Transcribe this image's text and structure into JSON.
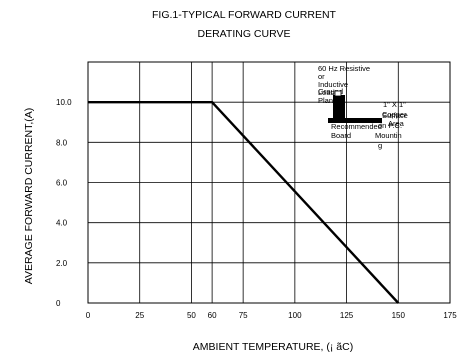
{
  "chart_data": {
    "type": "line",
    "title": [
      "FIG.1-TYPICAL FORWARD CURRENT",
      "DERATING CURVE"
    ],
    "xlabel": "AMBIENT TEMPERATURE, (¡ ãC)",
    "ylabel": "AVERAGE FORWARD CURRENT,(A)",
    "x_ticks": [
      0,
      25,
      50,
      60,
      75,
      100,
      125,
      150,
      175
    ],
    "y_ticks": [
      0,
      2.0,
      4.0,
      6.0,
      8.0,
      10.0
    ],
    "x_tick_labels": [
      "0",
      "25",
      "50",
      "60",
      "75",
      "100",
      "125",
      "150",
      "175"
    ],
    "y_tick_labels": [
      "0",
      "2.0",
      "4.0",
      "6.0",
      "8.0",
      "10.0"
    ],
    "xlim": [
      0,
      175
    ],
    "ylim": [
      0,
      12
    ],
    "grid": true,
    "series": [
      {
        "x": [
          0,
          60,
          150
        ],
        "y": [
          10.0,
          10.0,
          0
        ]
      }
    ],
    "annotations": {
      "inset_lines": [
        "60 Hz Resistive",
        "or",
        "Inductive",
        "Load"
      ],
      "ground_plane": [
        "Ground",
        "Plane"
      ],
      "mount_lines": [
        "1\" X 1\"",
        "Copper",
        "Surface",
        "Area",
        "on P.C."
      ],
      "board_lines": [
        "Recommended",
        "Board"
      ],
      "mounting_lines": [
        "Mountin",
        "g"
      ]
    }
  }
}
